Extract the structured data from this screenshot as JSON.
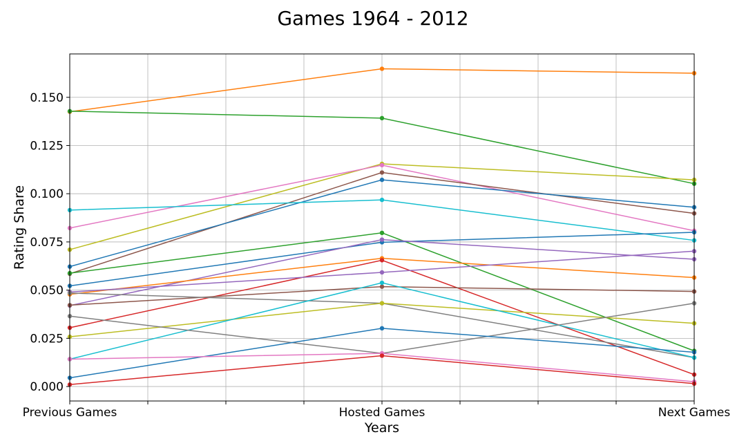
{
  "chart_data": {
    "type": "line",
    "title": "Games 1964 - 2012",
    "xlabel": "Years",
    "ylabel": "Rating Share",
    "categories": [
      "Previous Games",
      "Hosted Games",
      "Next Games"
    ],
    "ylim": [
      -0.0075,
      0.1725
    ],
    "yticks": [
      0.0,
      0.025,
      0.05,
      0.075,
      0.1,
      0.125,
      0.15
    ],
    "ytick_labels": [
      "0.000",
      "0.025",
      "0.050",
      "0.075",
      "0.100",
      "0.125",
      "0.150"
    ],
    "grid": true,
    "series": [
      {
        "color": "#ff7f0e",
        "values": [
          0.1425,
          0.1648,
          0.1625
        ]
      },
      {
        "color": "#2ca02c",
        "values": [
          0.1428,
          0.1392,
          0.1052
        ]
      },
      {
        "color": "#bcbd22",
        "values": [
          0.071,
          0.1155,
          0.1072
        ]
      },
      {
        "color": "#e377c2",
        "values": [
          0.0822,
          0.1148,
          0.0808
        ]
      },
      {
        "color": "#8c564b",
        "values": [
          0.0585,
          0.111,
          0.0898
        ]
      },
      {
        "color": "#1f77b4",
        "values": [
          0.0622,
          0.1072,
          0.093
        ]
      },
      {
        "color": "#17becf",
        "values": [
          0.0915,
          0.0968,
          0.0758
        ]
      },
      {
        "color": "#2ca02c",
        "values": [
          0.0588,
          0.0797,
          0.0185
        ]
      },
      {
        "color": "#1f77b4",
        "values": [
          0.0522,
          0.0748,
          0.08
        ]
      },
      {
        "color": "#9467bd",
        "values": [
          0.042,
          0.0762,
          0.066
        ]
      },
      {
        "color": "#ff7f0e",
        "values": [
          0.0478,
          0.0665,
          0.0565
        ]
      },
      {
        "color": "#d62728",
        "values": [
          0.0305,
          0.0655,
          0.0062
        ]
      },
      {
        "color": "#9467bd",
        "values": [
          0.049,
          0.0592,
          0.0702
        ]
      },
      {
        "color": "#8c564b",
        "values": [
          0.0422,
          0.0518,
          0.0493
        ]
      },
      {
        "color": "#7f7f7f",
        "values": [
          0.0485,
          0.0432,
          0.015
        ]
      },
      {
        "color": "#bcbd22",
        "values": [
          0.0258,
          0.0432,
          0.0328
        ]
      },
      {
        "color": "#17becf",
        "values": [
          0.0142,
          0.0538,
          0.015
        ]
      },
      {
        "color": "#7f7f7f",
        "values": [
          0.0365,
          0.0172,
          0.0432
        ]
      },
      {
        "color": "#1f77b4",
        "values": [
          0.0045,
          0.0302,
          0.0178
        ]
      },
      {
        "color": "#e377c2",
        "values": [
          0.0142,
          0.0172,
          0.0025
        ]
      },
      {
        "color": "#d62728",
        "values": [
          0.001,
          0.016,
          0.0015
        ]
      }
    ]
  }
}
